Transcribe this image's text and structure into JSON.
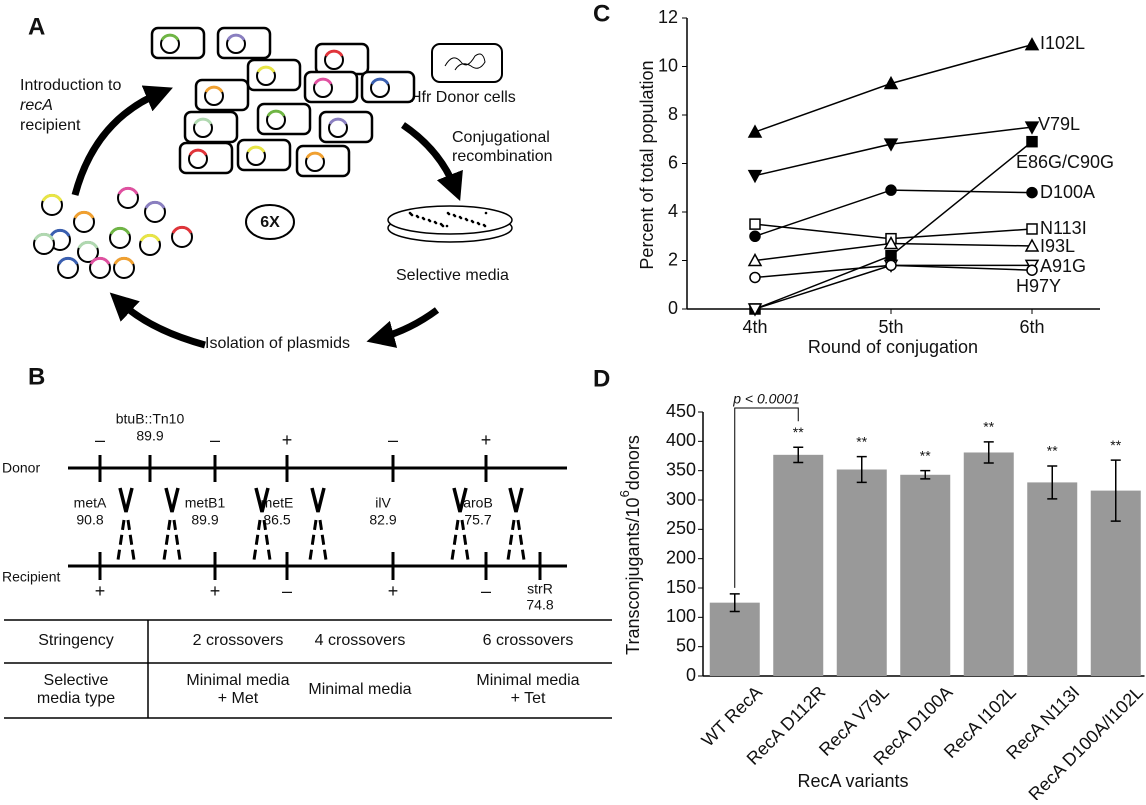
{
  "panel_a": {
    "label": "A",
    "intro": [
      "Introduction to",
      "recA",
      "recipient"
    ],
    "donor": "Hfr Donor cells",
    "conjugation": [
      "Conjugational",
      "recombination"
    ],
    "media": "Selective media",
    "isolation": "Isolation of plasmids",
    "cycles": "6X"
  },
  "panel_b": {
    "label": "B",
    "donor": "Donor",
    "recipient": "Recipient",
    "donor_marker": {
      "name": "btuB::Tn10",
      "position": 89.9
    },
    "recipient_marker": {
      "name": "strR",
      "position": 74.8
    },
    "genes": [
      {
        "name": "metA",
        "position": 90.8,
        "donor": "–",
        "recipient": "+"
      },
      {
        "name": "metB1",
        "position": 89.9,
        "donor": "–",
        "recipient": "+"
      },
      {
        "name": "metE",
        "position": 86.5,
        "donor": "+",
        "recipient": "–"
      },
      {
        "name": "ilV",
        "position": 82.9,
        "donor": "–",
        "recipient": "+"
      },
      {
        "name": "aroB",
        "position": 75.7,
        "donor": "+",
        "recipient": "–"
      }
    ],
    "table": {
      "rows": [
        [
          [
            "Stringency"
          ],
          [
            "2 crossovers"
          ],
          [
            "4 crossovers"
          ],
          [
            "6 crossovers"
          ]
        ],
        [
          [
            "Selective",
            "media type"
          ],
          [
            "Minimal media",
            "+ Met"
          ],
          [
            "Minimal media"
          ],
          [
            "Minimal media",
            "+ Tet"
          ]
        ]
      ]
    }
  },
  "chart_data": [
    {
      "type": "line",
      "label": "C",
      "xlabel": "Round of conjugation",
      "ylabel": "Percent of total population",
      "categories": [
        "4th",
        "5th",
        "6th"
      ],
      "ylim": [
        0,
        12
      ],
      "yticks": [
        0,
        2,
        4,
        6,
        8,
        10,
        12
      ],
      "series": [
        {
          "name": "I102L",
          "color": "#000000",
          "marker": "triangle-up",
          "filled": true,
          "values": [
            7.3,
            9.3,
            10.9
          ]
        },
        {
          "name": "V79L",
          "color": "#000000",
          "marker": "triangle-down",
          "filled": true,
          "values": [
            5.5,
            6.8,
            7.5
          ]
        },
        {
          "name": "E86G/C90G",
          "color": "#000000",
          "marker": "square",
          "filled": true,
          "values": [
            0,
            2.2,
            6.9
          ]
        },
        {
          "name": "D100A",
          "color": "#000000",
          "marker": "circle",
          "filled": true,
          "values": [
            3.0,
            4.9,
            4.8
          ]
        },
        {
          "name": "N113I",
          "color": "#000000",
          "marker": "square",
          "filled": false,
          "values": [
            3.5,
            2.9,
            3.3
          ]
        },
        {
          "name": "I93L",
          "color": "#000000",
          "marker": "triangle-up",
          "filled": false,
          "values": [
            2.0,
            2.7,
            2.6
          ]
        },
        {
          "name": "A91G",
          "color": "#000000",
          "marker": "triangle-down",
          "filled": false,
          "values": [
            0,
            1.8,
            1.8
          ]
        },
        {
          "name": "H97Y",
          "color": "#000000",
          "marker": "circle",
          "filled": false,
          "values": [
            1.3,
            1.8,
            1.6
          ]
        }
      ]
    },
    {
      "type": "bar",
      "label": "D",
      "xlabel": "RecA variants",
      "ylabel": [
        "Transconjugants/10",
        "6",
        "donors"
      ],
      "categories": [
        "WT RecA",
        "RecA D112R",
        "RecA V79L",
        "RecA D100A",
        "RecA I102L",
        "RecA N113I",
        "RecA D100A/I102L"
      ],
      "values": [
        125,
        377,
        352,
        343,
        381,
        330,
        316
      ],
      "errors": [
        15,
        13,
        22,
        7,
        18,
        28,
        52
      ],
      "significance": [
        null,
        "**",
        "**",
        "**",
        "**",
        "**",
        "**"
      ],
      "annotation": "p < 0.0001",
      "color": "#999999",
      "ylim": [
        0,
        450
      ],
      "yticks": [
        0,
        50,
        100,
        150,
        200,
        250,
        300,
        350,
        400,
        450
      ]
    }
  ]
}
